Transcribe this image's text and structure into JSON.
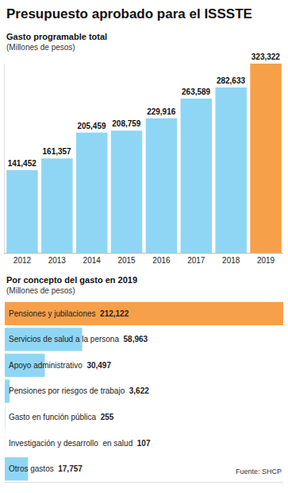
{
  "title": "Presupuesto aprobado para el ISSSTE",
  "source": "Fuente: SHCP",
  "chart_data": [
    {
      "type": "bar",
      "title": "Gasto programable total",
      "subtitle": "(Millones de pesos)",
      "categories": [
        "2012",
        "2013",
        "2014",
        "2015",
        "2016",
        "2017",
        "2018",
        "2019"
      ],
      "values": [
        141452,
        161357,
        205459,
        208759,
        229916,
        263589,
        282633,
        323322
      ],
      "value_labels": [
        "141,452",
        "161,357",
        "205,459",
        "208,759",
        "229,916",
        "263,589",
        "282,633",
        "323,322"
      ],
      "colors": [
        "#8fd6f5",
        "#8fd6f5",
        "#8fd6f5",
        "#8fd6f5",
        "#8fd6f5",
        "#8fd6f5",
        "#8fd6f5",
        "#f7a04a"
      ],
      "ylim": [
        0,
        323322
      ],
      "data_labels": true,
      "tick_labels": "x",
      "grid": false
    },
    {
      "type": "bar",
      "orientation": "horizontal",
      "title": "Por concepto del gasto en 2019",
      "subtitle": "(Millones de pesos)",
      "categories": [
        "Pensiones y jubilaciones",
        "Servicios de salud a la persona",
        "Apoyo administrativo",
        "Pensiones por riesgos de trabajo",
        "Gasto en función pública",
        "Investigación y desarrollo  en salud",
        "Otros gastos"
      ],
      "values": [
        212122,
        58963,
        30497,
        3622,
        255,
        107,
        17757
      ],
      "value_labels": [
        "212,122",
        "58,963",
        "30,497",
        "3,622",
        "255",
        "107",
        "17,757"
      ],
      "colors": [
        "#f7a04a",
        "#8fd6f5",
        "#8fd6f5",
        "#8fd6f5",
        "#8fd6f5",
        "#8fd6f5",
        "#8fd6f5"
      ],
      "xlim": [
        0,
        212122
      ],
      "data_labels": true,
      "tick_labels": false,
      "grid": false
    }
  ]
}
